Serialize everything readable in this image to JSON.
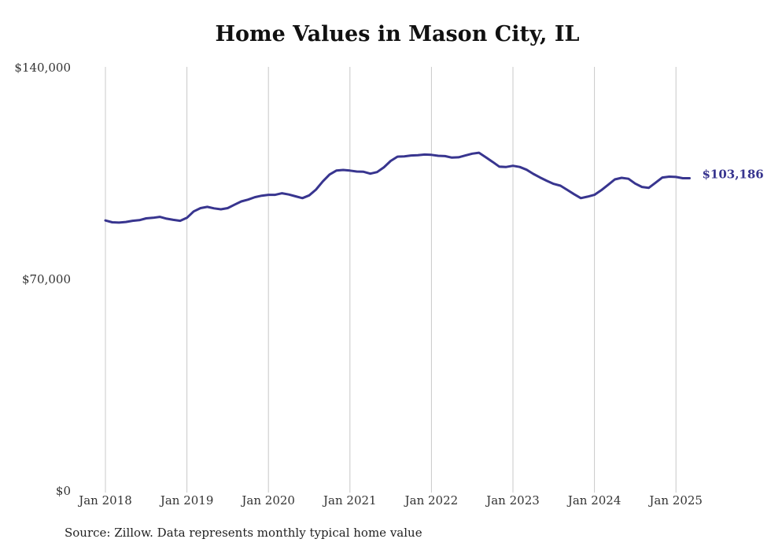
{
  "chart_data": {
    "type": "line",
    "title": "Home Values in Mason City, IL",
    "xlabel": "",
    "ylabel": "",
    "source": "Source: Zillow. Data represents monthly typical home value",
    "ylim": [
      0,
      140000
    ],
    "y_ticks": [
      {
        "value": 0,
        "label": "$0"
      },
      {
        "value": 70000,
        "label": "$70,000"
      },
      {
        "value": 140000,
        "label": "$140,000"
      }
    ],
    "x_ticks": [
      {
        "date": "2018-01",
        "label": "Jan 2018"
      },
      {
        "date": "2019-01",
        "label": "Jan 2019"
      },
      {
        "date": "2020-01",
        "label": "Jan 2020"
      },
      {
        "date": "2021-01",
        "label": "Jan 2021"
      },
      {
        "date": "2022-01",
        "label": "Jan 2022"
      },
      {
        "date": "2023-01",
        "label": "Jan 2023"
      },
      {
        "date": "2024-01",
        "label": "Jan 2024"
      },
      {
        "date": "2025-01",
        "label": "Jan 2025"
      }
    ],
    "grid": "vertical",
    "line_color": "#38358f",
    "last_value_label": "$103,186",
    "series": [
      {
        "dates": [
          "2018-01",
          "2018-02",
          "2018-03",
          "2018-04",
          "2018-05",
          "2018-06",
          "2018-07",
          "2018-08",
          "2018-09",
          "2018-10",
          "2018-11",
          "2018-12",
          "2019-01",
          "2019-02",
          "2019-03",
          "2019-04",
          "2019-05",
          "2019-06",
          "2019-07",
          "2019-08",
          "2019-09",
          "2019-10",
          "2019-11",
          "2019-12",
          "2020-01",
          "2020-02",
          "2020-03",
          "2020-04",
          "2020-05",
          "2020-06",
          "2020-07",
          "2020-08",
          "2020-09",
          "2020-10",
          "2020-11",
          "2020-12",
          "2021-01",
          "2021-02",
          "2021-03",
          "2021-04",
          "2021-05",
          "2021-06",
          "2021-07",
          "2021-08",
          "2021-09",
          "2021-10",
          "2021-11",
          "2021-12",
          "2022-01",
          "2022-02",
          "2022-03",
          "2022-04",
          "2022-05",
          "2022-06",
          "2022-07",
          "2022-08",
          "2022-09",
          "2022-10",
          "2022-11",
          "2022-12",
          "2023-01",
          "2023-02",
          "2023-03",
          "2023-04",
          "2023-05",
          "2023-06",
          "2023-07",
          "2023-08",
          "2023-09",
          "2023-10",
          "2023-11",
          "2023-12",
          "2024-01",
          "2024-02",
          "2024-03",
          "2024-04",
          "2024-05",
          "2024-06",
          "2024-07",
          "2024-08",
          "2024-09",
          "2024-10",
          "2024-11",
          "2024-12",
          "2025-01",
          "2025-02",
          "2025-03"
        ],
        "values": [
          89200,
          88600,
          88500,
          88700,
          89100,
          89300,
          89900,
          90100,
          90400,
          89800,
          89400,
          89100,
          90100,
          92200,
          93300,
          93700,
          93200,
          92900,
          93300,
          94400,
          95500,
          96100,
          96900,
          97400,
          97700,
          97700,
          98200,
          97800,
          97200,
          96600,
          97500,
          99400,
          102100,
          104400,
          105700,
          105900,
          105700,
          105400,
          105300,
          104700,
          105200,
          106800,
          108900,
          110300,
          110400,
          110700,
          110800,
          111000,
          110900,
          110600,
          110500,
          110000,
          110100,
          110700,
          111300,
          111600,
          110100,
          108600,
          107000,
          106900,
          107300,
          106900,
          106000,
          104600,
          103400,
          102300,
          101300,
          100700,
          99300,
          97900,
          96600,
          97100,
          97700,
          99200,
          101000,
          102800,
          103300,
          103000,
          101400,
          100300,
          100000,
          101700,
          103400,
          103700,
          103600,
          103186,
          103186
        ]
      }
    ]
  }
}
